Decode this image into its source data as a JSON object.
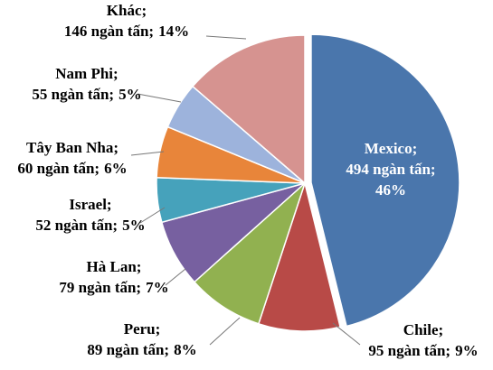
{
  "chart_data": {
    "type": "pie",
    "categories": [
      "Mexico;",
      "Chile;",
      "Peru;",
      "Hà Lan;",
      "Israel;",
      "Tây Ban Nha;",
      "Nam Phi;",
      "Khác;"
    ],
    "values": [
      494,
      95,
      89,
      79,
      52,
      60,
      55,
      146
    ],
    "value_labels": [
      "494 ngàn tấn;",
      "95 ngàn tấn;",
      "89 ngàn tấn;",
      "79 ngàn tấn;",
      "52 ngàn tấn;",
      "60 ngàn tấn;",
      "55 ngàn tấn;",
      "146 ngàn tấn;"
    ],
    "percents": [
      46,
      9,
      8,
      7,
      5,
      6,
      5,
      14
    ],
    "percent_labels": [
      "46%",
      "9%",
      "8%",
      "7%",
      "5%",
      "6%",
      "5%",
      "14%"
    ],
    "colors": [
      "#4a76ac",
      "#b84a47",
      "#91b150",
      "#7760a0",
      "#46a2bb",
      "#e8853a",
      "#9db3dc",
      "#d69390"
    ]
  }
}
